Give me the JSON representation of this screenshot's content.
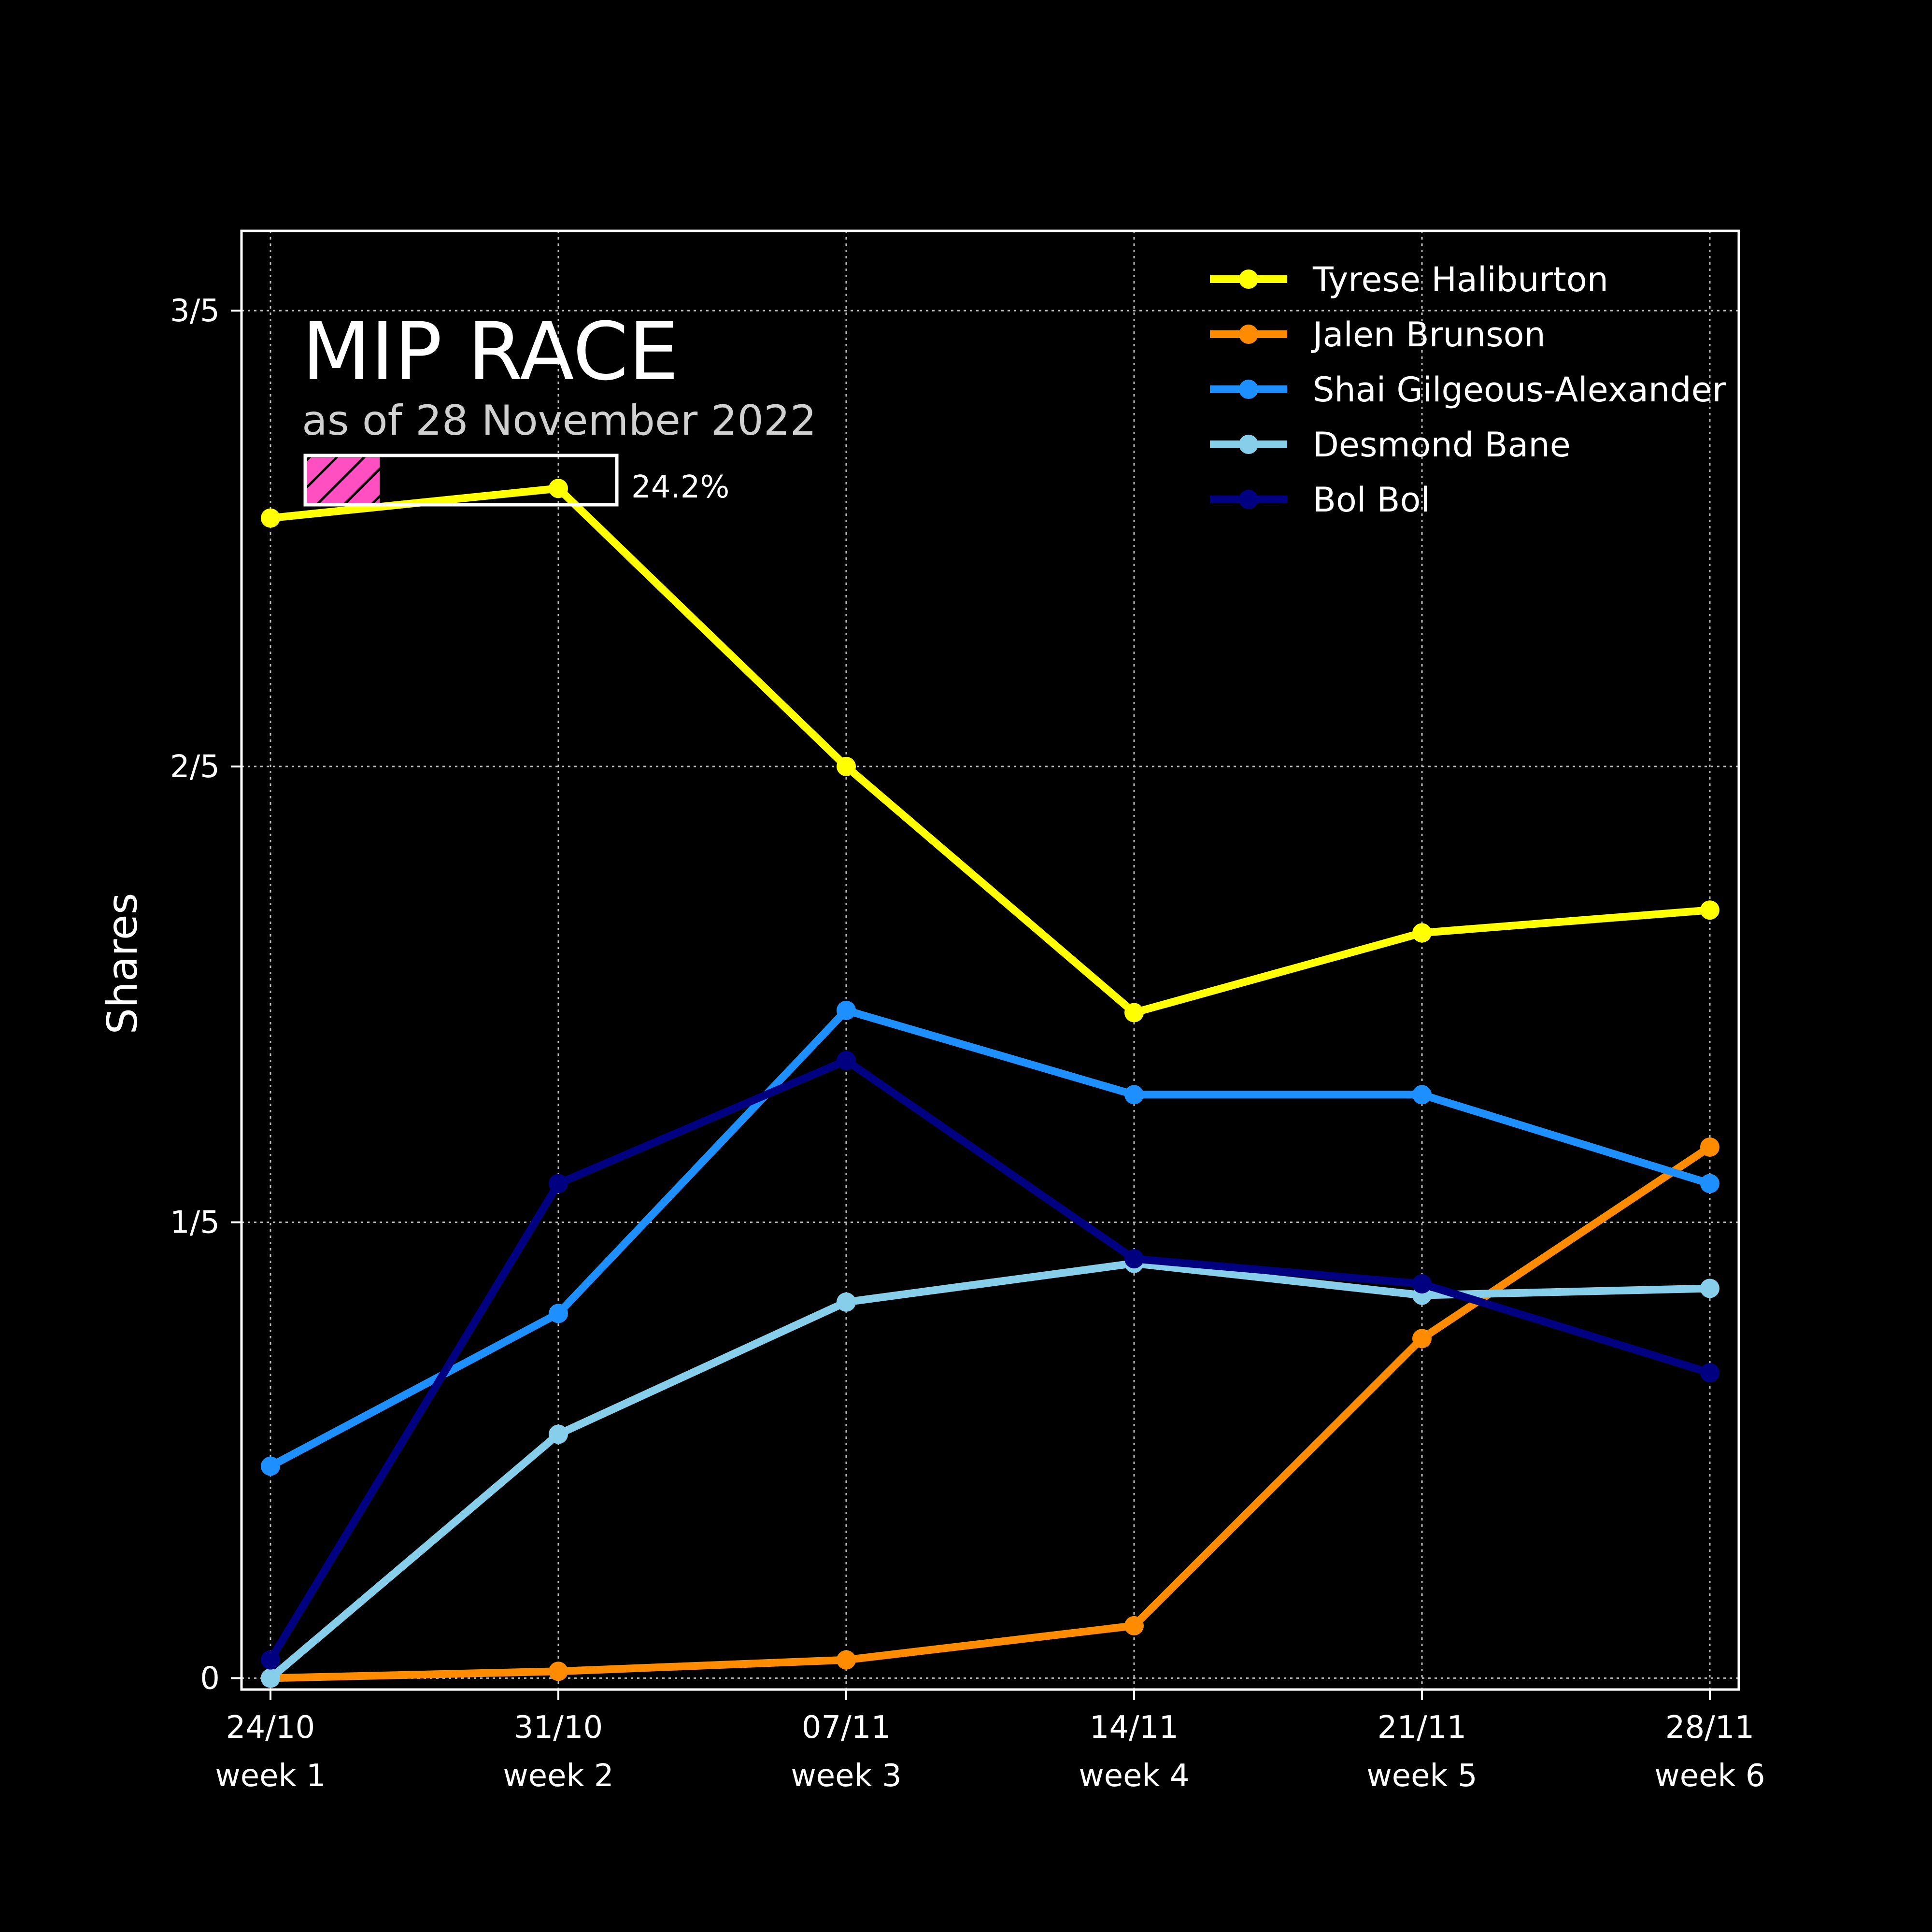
{
  "chart_data": {
    "type": "line",
    "title": "MIP RACE",
    "subtitle": "as of 28 November 2022",
    "progress": {
      "value": 24.2,
      "label": "24.2%",
      "color": "#ff4fc0"
    },
    "ylabel": "Shares",
    "xlabel": "",
    "ylim": [
      -0.005,
      0.635
    ],
    "yticks": [
      {
        "value": 0,
        "label": "0"
      },
      {
        "value": 0.2,
        "label": "1/5"
      },
      {
        "value": 0.4,
        "label": "2/5"
      },
      {
        "value": 0.6,
        "label": "3/5"
      }
    ],
    "categories": [
      {
        "date": "24/10",
        "week": "week 1"
      },
      {
        "date": "31/10",
        "week": "week 2"
      },
      {
        "date": "07/11",
        "week": "week 3"
      },
      {
        "date": "14/11",
        "week": "week 4"
      },
      {
        "date": "21/11",
        "week": "week 5"
      },
      {
        "date": "28/11",
        "week": "week 6"
      }
    ],
    "grid": true,
    "legend_position": "top-right",
    "series": [
      {
        "name": "Tyrese Haliburton",
        "color": "#ffff00",
        "values": [
          0.509,
          0.522,
          0.4,
          0.292,
          0.327,
          0.337
        ]
      },
      {
        "name": "Jalen Brunson",
        "color": "#ff8c00",
        "values": [
          0.0,
          0.003,
          0.008,
          0.023,
          0.149,
          0.233
        ]
      },
      {
        "name": "Shai Gilgeous-Alexander",
        "color": "#1e8fff",
        "values": [
          0.093,
          0.16,
          0.293,
          0.256,
          0.256,
          0.217
        ]
      },
      {
        "name": "Desmond Bane",
        "color": "#87ceeb",
        "values": [
          0.0,
          0.107,
          0.165,
          0.182,
          0.168,
          0.171
        ]
      },
      {
        "name": "Bol Bol",
        "color": "#000080",
        "values": [
          0.008,
          0.217,
          0.271,
          0.184,
          0.173,
          0.134
        ]
      }
    ]
  }
}
